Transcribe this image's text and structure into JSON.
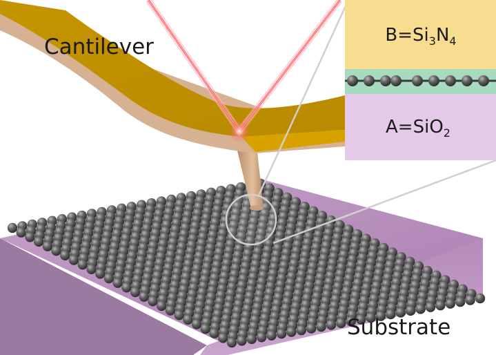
{
  "labels": {
    "cantilever": "Cantilever",
    "substrate": "Substrate"
  },
  "inset": {
    "top_layer": {
      "prefix": "B=Si",
      "sub1": "3",
      "mid": "N",
      "sub2": "4"
    },
    "bottom_layer": {
      "prefix": "A=SiO",
      "sub1": "2"
    }
  },
  "colors": {
    "cantilever_gold": "#c99a00",
    "cantilever_edge": "#d8b394",
    "laser": "#ff4a4a",
    "laser_glow": "#ff9aa8",
    "tip": "#cfa57e",
    "atoms": "#5a5a5a",
    "substrate": "#b48ab9",
    "inset_top": "#f8dc90",
    "inset_middle": "#a7dbbf",
    "inset_bottom": "#e4c9e8",
    "zoom_lines": "#c8c8c8"
  }
}
